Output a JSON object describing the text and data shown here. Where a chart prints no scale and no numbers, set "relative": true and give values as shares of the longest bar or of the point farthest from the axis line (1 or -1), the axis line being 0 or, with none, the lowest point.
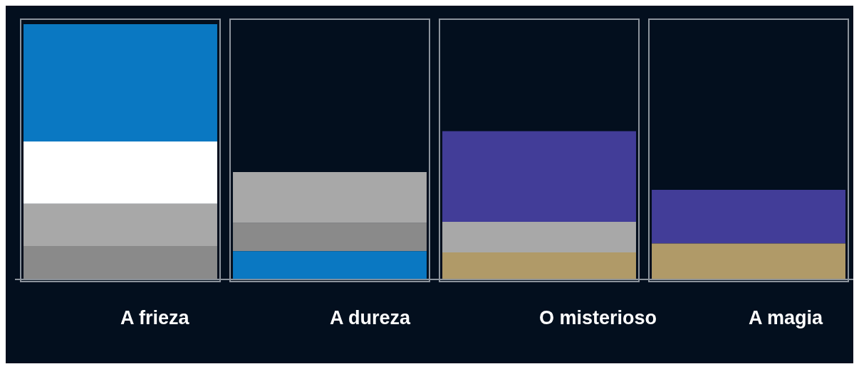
{
  "chart_data": {
    "type": "bar",
    "stacked": true,
    "relative": true,
    "legend": false,
    "categories": [
      "A frieza",
      "A dureza",
      "O misterioso",
      "A magia"
    ],
    "series": [
      {
        "colors": [
          "#8a8a8a",
          "#0a78c2",
          "#b09a68",
          "#b09a68"
        ],
        "values": [
          0.13,
          0.11,
          0.105,
          0.14
        ]
      },
      {
        "colors": [
          "#a8a8a8",
          "#8a8a8a",
          "#a8a8a8",
          "#423d98"
        ],
        "values": [
          0.165,
          0.11,
          0.12,
          0.21
        ]
      },
      {
        "colors": [
          "#ffffff",
          "#a8a8a8",
          "#423d98",
          null
        ],
        "values": [
          0.245,
          0.2,
          0.355,
          null
        ]
      },
      {
        "colors": [
          "#0a78c2",
          null,
          null,
          null
        ],
        "values": [
          0.46,
          null,
          null,
          null
        ]
      }
    ]
  }
}
